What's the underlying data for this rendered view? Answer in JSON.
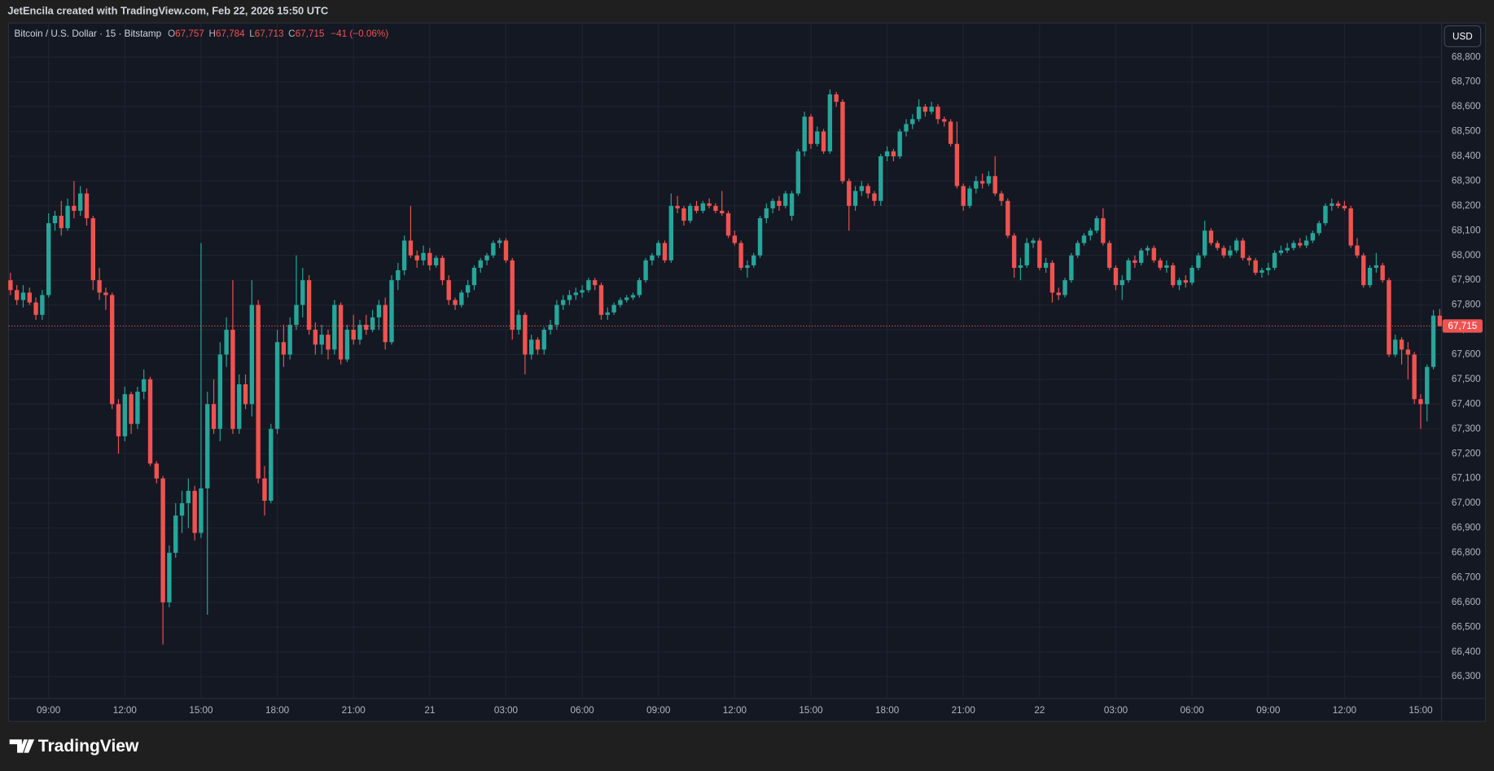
{
  "header": {
    "attribution": "JetEncila created with TradingView.com, Feb 22, 2026 15:50 UTC"
  },
  "footer": {
    "brand": "TradingView"
  },
  "chart_data": {
    "type": "candlestick",
    "title": "Bitcoin / U.S. Dollar · 15 · Bitstamp",
    "legend": [
      {
        "label": "O",
        "value": "67,757"
      },
      {
        "label": "H",
        "value": "67,784"
      },
      {
        "label": "L",
        "value": "67,713"
      },
      {
        "label": "C",
        "value": "67,715"
      }
    ],
    "change": "−41 (−0.06%)",
    "currency": "USD",
    "last_price_label": "67,715",
    "up_color": "#26a69a",
    "down_color": "#ef5350",
    "grid": true,
    "categories": [
      null,
      null,
      null,
      null,
      null,
      null,
      "09:00",
      null,
      null,
      null,
      null,
      null,
      null,
      null,
      null,
      null,
      null,
      null,
      "12:00",
      null,
      null,
      null,
      null,
      null,
      null,
      null,
      null,
      null,
      null,
      null,
      "15:00",
      null,
      null,
      null,
      null,
      null,
      null,
      null,
      null,
      null,
      null,
      null,
      "18:00",
      null,
      null,
      null,
      null,
      null,
      null,
      null,
      null,
      null,
      null,
      null,
      "21:00",
      null,
      null,
      null,
      null,
      null,
      null,
      null,
      null,
      null,
      null,
      null,
      "21",
      null,
      null,
      null,
      null,
      null,
      null,
      null,
      null,
      null,
      null,
      null,
      "03:00",
      null,
      null,
      null,
      null,
      null,
      null,
      null,
      null,
      null,
      null,
      null,
      "06:00",
      null,
      null,
      null,
      null,
      null,
      null,
      null,
      null,
      null,
      null,
      null,
      "09:00",
      null,
      null,
      null,
      null,
      null,
      null,
      null,
      null,
      null,
      null,
      null,
      "12:00",
      null,
      null,
      null,
      null,
      null,
      null,
      null,
      null,
      null,
      null,
      null,
      "15:00",
      null,
      null,
      null,
      null,
      null,
      null,
      null,
      null,
      null,
      null,
      null,
      "18:00",
      null,
      null,
      null,
      null,
      null,
      null,
      null,
      null,
      null,
      null,
      null,
      "21:00",
      null,
      null,
      null,
      null,
      null,
      null,
      null,
      null,
      null,
      null,
      null,
      "22",
      null,
      null,
      null,
      null,
      null,
      null,
      null,
      null,
      null,
      null,
      null,
      "03:00",
      null,
      null,
      null,
      null,
      null,
      null,
      null,
      null,
      null,
      null,
      null,
      "06:00",
      null,
      null,
      null,
      null,
      null,
      null,
      null,
      null,
      null,
      null,
      null,
      "09:00",
      null,
      null,
      null,
      null,
      null,
      null,
      null,
      null,
      null,
      null,
      null,
      "12:00",
      null,
      null,
      null,
      null,
      null,
      null,
      null,
      null,
      null,
      null,
      null,
      "15:00",
      null,
      null,
      null
    ],
    "open": [
      67900,
      67860,
      67820,
      67850,
      67810,
      67760,
      67840,
      68130,
      68160,
      68110,
      68200,
      68180,
      68250,
      68150,
      67900,
      67850,
      67840,
      67400,
      67270,
      67440,
      67320,
      67450,
      67500,
      67160,
      67100,
      66600,
      66800,
      66950,
      67000,
      67050,
      66880,
      67060,
      67400,
      67300,
      67600,
      67700,
      67300,
      67480,
      67400,
      67800,
      67100,
      67010,
      67300,
      67650,
      67600,
      67720,
      67800,
      67900,
      67700,
      67640,
      67680,
      67620,
      67800,
      67580,
      67700,
      67660,
      67720,
      67700,
      67750,
      67800,
      67650,
      67900,
      67940,
      68060,
      68000,
      67980,
      68010,
      67960,
      67990,
      67900,
      67820,
      67800,
      67850,
      67880,
      67950,
      67980,
      68000,
      68050,
      68060,
      67980,
      67700,
      67760,
      67600,
      67660,
      67620,
      67700,
      67720,
      67800,
      67820,
      67840,
      67850,
      67860,
      67900,
      67880,
      67760,
      67770,
      67800,
      67820,
      67830,
      67840,
      67900,
      67980,
      68000,
      68050,
      67980,
      68200,
      68190,
      68140,
      68200,
      68180,
      68210,
      68200,
      68180,
      68170,
      68080,
      68050,
      67950,
      67960,
      68000,
      68150,
      68190,
      68220,
      68200,
      68160,
      68250,
      68420,
      68560,
      68450,
      68500,
      68420,
      68650,
      68620,
      68300,
      68200,
      68260,
      68280,
      68250,
      68220,
      68400,
      68420,
      68400,
      68500,
      68530,
      68550,
      68600,
      68580,
      68600,
      68550,
      68540,
      68450,
      68280,
      68200,
      68270,
      68300,
      68290,
      68320,
      68250,
      68220,
      68080,
      67950,
      67960,
      68050,
      68060,
      67950,
      67970,
      67850,
      67840,
      67900,
      68000,
      68050,
      68080,
      68100,
      68150,
      68050,
      67950,
      67880,
      67900,
      67980,
      67970,
      68020,
      68030,
      67980,
      67950,
      67960,
      67880,
      67900,
      67890,
      67950,
      68000,
      68100,
      68050,
      68030,
      68000,
      68020,
      68060,
      67990,
      67980,
      67930,
      67940,
      67950,
      68010,
      68020,
      68030,
      68050,
      68040,
      68060,
      68090,
      68130,
      68200,
      68210,
      68200,
      68190,
      68040,
      68000,
      67880,
      67950,
      67960,
      67900,
      67600,
      67660,
      67620,
      67600,
      67420,
      67400,
      67550,
      67757
    ],
    "high": [
      67930,
      67880,
      67880,
      67870,
      67830,
      67860,
      68170,
      68180,
      68220,
      68230,
      68300,
      68280,
      68270,
      68160,
      67950,
      67870,
      67850,
      67420,
      67470,
      67450,
      67470,
      67540,
      67510,
      67170,
      67110,
      66830,
      67000,
      67050,
      67100,
      67070,
      68050,
      67450,
      67500,
      67650,
      67750,
      67900,
      67520,
      67520,
      67900,
      67820,
      67150,
      67320,
      67700,
      67720,
      67750,
      68000,
      67950,
      67920,
      67730,
      67720,
      67700,
      67820,
      67810,
      67720,
      67760,
      67740,
      67760,
      67780,
      67820,
      67830,
      67920,
      67970,
      68080,
      68200,
      68020,
      68040,
      68030,
      68000,
      68000,
      67920,
      67830,
      67860,
      67900,
      67960,
      67990,
      68010,
      68060,
      68070,
      68070,
      67990,
      67780,
      67770,
      67680,
      67670,
      67710,
      67740,
      67820,
      67840,
      67860,
      67870,
      67880,
      67910,
      67910,
      67890,
      67790,
      67810,
      67830,
      67840,
      67850,
      67910,
      67990,
      68010,
      68060,
      68060,
      68250,
      68240,
      68200,
      68210,
      68220,
      68220,
      68230,
      68210,
      68260,
      68180,
      68100,
      68060,
      67980,
      68010,
      68160,
      68210,
      68230,
      68240,
      68260,
      68260,
      68430,
      68580,
      68570,
      68520,
      68510,
      68670,
      68660,
      68630,
      68310,
      68280,
      68300,
      68290,
      68260,
      68410,
      68440,
      68430,
      68510,
      68550,
      68570,
      68630,
      68610,
      68620,
      68610,
      68560,
      68550,
      68540,
      68290,
      68280,
      68320,
      68330,
      68340,
      68400,
      68260,
      68230,
      68090,
      67990,
      68070,
      68070,
      68070,
      67990,
      67980,
      67870,
      67910,
      68010,
      68060,
      68090,
      68110,
      68160,
      68190,
      68060,
      67960,
      67920,
      67990,
      68000,
      68030,
      68040,
      68040,
      67990,
      67980,
      67970,
      67910,
      67920,
      67960,
      68010,
      68140,
      68110,
      68060,
      68040,
      68040,
      68070,
      68070,
      68000,
      67990,
      67950,
      67970,
      68020,
      68040,
      68050,
      68060,
      68070,
      68080,
      68100,
      68140,
      68210,
      68230,
      68220,
      68220,
      68200,
      68070,
      68010,
      67960,
      68010,
      67970,
      67910,
      67680,
      67670,
      67650,
      67610,
      67440,
      67560,
      67780,
      67784
    ],
    "low": [
      67840,
      67800,
      67790,
      67800,
      67740,
      67740,
      67830,
      68100,
      68080,
      68100,
      68150,
      68160,
      68120,
      67860,
      67820,
      67780,
      67380,
      67200,
      67250,
      67280,
      67300,
      67420,
      67150,
      67080,
      66430,
      66580,
      66780,
      66880,
      66900,
      66850,
      66860,
      66550,
      67280,
      67250,
      67550,
      67280,
      67280,
      67380,
      67350,
      67080,
      66950,
      67000,
      67280,
      67550,
      67580,
      67700,
      67750,
      67680,
      67600,
      67600,
      67580,
      67600,
      67560,
      67570,
      67640,
      67640,
      67680,
      67690,
      67700,
      67620,
      67640,
      67860,
      67920,
      67990,
      67950,
      67960,
      67940,
      67950,
      67880,
      67800,
      67780,
      67790,
      67830,
      67860,
      67930,
      67960,
      67990,
      68030,
      67970,
      67660,
      67680,
      67520,
      67580,
      67600,
      67600,
      67680,
      67700,
      67780,
      67800,
      67820,
      67830,
      67850,
      67860,
      67740,
      67740,
      67760,
      67790,
      67810,
      67820,
      67830,
      67890,
      67960,
      67990,
      67970,
      67970,
      68170,
      68120,
      68130,
      68170,
      68170,
      68190,
      68170,
      68160,
      68070,
      68040,
      67940,
      67910,
      67950,
      67990,
      68130,
      68170,
      68180,
      68190,
      68140,
      68240,
      68400,
      68430,
      68440,
      68410,
      68410,
      68600,
      68290,
      68100,
      68180,
      68240,
      68230,
      68200,
      68200,
      68380,
      68380,
      68390,
      68480,
      68510,
      68540,
      68560,
      68570,
      68530,
      68520,
      68440,
      68270,
      68180,
      68190,
      68250,
      68270,
      68280,
      68240,
      68200,
      68070,
      67910,
      67900,
      67950,
      68030,
      67940,
      67930,
      67810,
      67820,
      67830,
      67890,
      67990,
      68040,
      68060,
      68090,
      68040,
      67940,
      67860,
      67820,
      67890,
      67950,
      67960,
      68000,
      67970,
      67940,
      67930,
      67870,
      67860,
      67870,
      67880,
      67940,
      67990,
      68040,
      68020,
      67990,
      67990,
      68010,
      67980,
      67960,
      67920,
      67910,
      67920,
      67940,
      68000,
      68010,
      68020,
      68030,
      68030,
      68050,
      68080,
      68120,
      68180,
      68190,
      68180,
      68030,
      67990,
      67870,
      67870,
      67930,
      67890,
      67590,
      67590,
      67560,
      67500,
      67400,
      67300,
      67330,
      67540,
      67713
    ],
    "close": [
      67860,
      67820,
      67850,
      67810,
      67760,
      67840,
      68130,
      68160,
      68110,
      68200,
      68180,
      68250,
      68150,
      67900,
      67850,
      67840,
      67400,
      67270,
      67440,
      67320,
      67450,
      67500,
      67160,
      67100,
      66600,
      66800,
      66950,
      67000,
      67050,
      66880,
      67060,
      67400,
      67300,
      67600,
      67700,
      67300,
      67480,
      67400,
      67800,
      67100,
      67010,
      67300,
      67650,
      67600,
      67720,
      67800,
      67900,
      67700,
      67640,
      67680,
      67620,
      67800,
      67580,
      67700,
      67660,
      67720,
      67700,
      67750,
      67800,
      67650,
      67900,
      67940,
      68060,
      68000,
      67980,
      68010,
      67960,
      67990,
      67900,
      67820,
      67800,
      67850,
      67880,
      67950,
      67980,
      68000,
      68050,
      68060,
      67980,
      67700,
      67760,
      67600,
      67660,
      67620,
      67700,
      67720,
      67800,
      67820,
      67840,
      67850,
      67860,
      67900,
      67880,
      67760,
      67770,
      67800,
      67820,
      67830,
      67840,
      67900,
      67980,
      68000,
      68050,
      67980,
      68200,
      68190,
      68140,
      68200,
      68180,
      68210,
      68200,
      68180,
      68170,
      68080,
      68050,
      67950,
      67960,
      68000,
      68150,
      68190,
      68220,
      68200,
      68250,
      68250,
      68420,
      68560,
      68450,
      68500,
      68420,
      68650,
      68620,
      68300,
      68200,
      68260,
      68280,
      68250,
      68220,
      68400,
      68420,
      68400,
      68500,
      68530,
      68550,
      68600,
      68580,
      68600,
      68550,
      68540,
      68450,
      68280,
      68200,
      68270,
      68300,
      68290,
      68320,
      68250,
      68220,
      68080,
      67950,
      67960,
      68050,
      68060,
      67950,
      67970,
      67850,
      67840,
      67900,
      68000,
      68050,
      68080,
      68100,
      68150,
      68050,
      67950,
      67880,
      67900,
      67980,
      67970,
      68020,
      68030,
      67980,
      67950,
      67960,
      67880,
      67900,
      67890,
      67950,
      68000,
      68100,
      68050,
      68030,
      68000,
      68020,
      68060,
      67990,
      67980,
      67930,
      67940,
      67950,
      68010,
      68020,
      68030,
      68050,
      68040,
      68060,
      68090,
      68130,
      68200,
      68210,
      68200,
      68190,
      68040,
      68000,
      67880,
      67950,
      67960,
      67900,
      67600,
      67660,
      67620,
      67600,
      67420,
      67400,
      67550,
      67757,
      67715
    ],
    "ylim": [
      66212,
      68938
    ],
    "yticks": [
      {
        "value": 66300,
        "label": "66,300"
      },
      {
        "value": 66400,
        "label": "66,400"
      },
      {
        "value": 66500,
        "label": "66,500"
      },
      {
        "value": 66600,
        "label": "66,600"
      },
      {
        "value": 66700,
        "label": "66,700"
      },
      {
        "value": 66800,
        "label": "66,800"
      },
      {
        "value": 66900,
        "label": "66,900"
      },
      {
        "value": 67000,
        "label": "67,000"
      },
      {
        "value": 67100,
        "label": "67,100"
      },
      {
        "value": 67200,
        "label": "67,200"
      },
      {
        "value": 67300,
        "label": "67,300"
      },
      {
        "value": 67400,
        "label": "67,400"
      },
      {
        "value": 67500,
        "label": "67,500"
      },
      {
        "value": 67600,
        "label": "67,600"
      },
      {
        "value": 67700,
        "label": "67,700"
      },
      {
        "value": 67800,
        "label": "67,800"
      },
      {
        "value": 67900,
        "label": "67,900"
      },
      {
        "value": 68000,
        "label": "68,000"
      },
      {
        "value": 68100,
        "label": "68,100"
      },
      {
        "value": 68200,
        "label": "68,200"
      },
      {
        "value": 68300,
        "label": "68,300"
      },
      {
        "value": 68400,
        "label": "68,400"
      },
      {
        "value": 68500,
        "label": "68,500"
      },
      {
        "value": 68600,
        "label": "68,600"
      },
      {
        "value": 68700,
        "label": "68,700"
      },
      {
        "value": 68800,
        "label": "68,800"
      }
    ]
  }
}
